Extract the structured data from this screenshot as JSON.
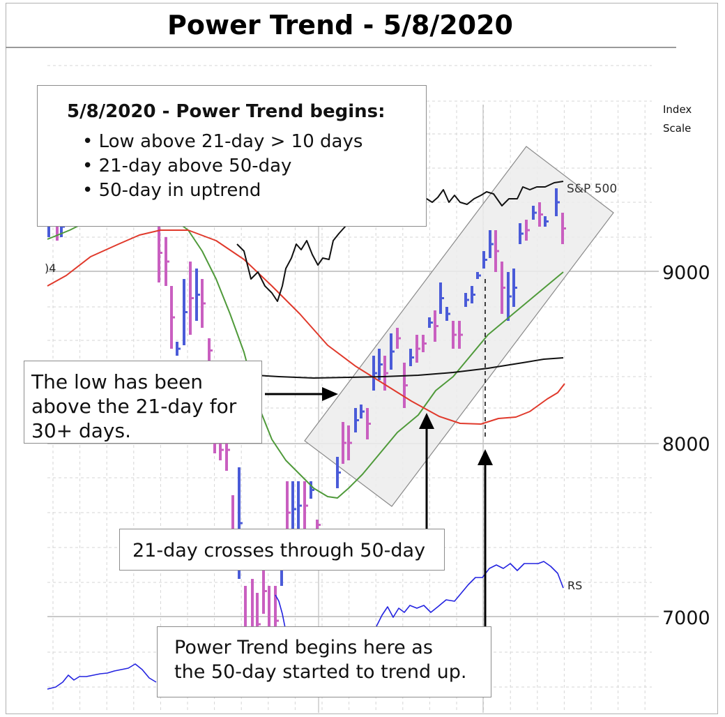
{
  "title": "Power Trend - 5/8/2020",
  "scale_label": [
    "Index",
    "Scale"
  ],
  "index_label": "S&P 500",
  "rs_label": "RS",
  "partial_label": ")4",
  "y_ticks": [
    "9000",
    "8000",
    "7000"
  ],
  "info_box": {
    "heading": "5/8/2020 - Power Trend begins:",
    "bullets": [
      "• Low above 21-day > 10 days",
      "• 21-day above 50-day",
      "• 50-day in uptrend"
    ]
  },
  "low_box": [
    "The low has been",
    "above the 21-day for",
    "30+ days."
  ],
  "cross_box": "21-day crosses through 50-day",
  "pt_box": [
    "Power Trend begins here as",
    "the 50-day started to trend up."
  ],
  "colors": {
    "up_bar": "#4a5bd8",
    "down_bar": "#c95fc0",
    "ma21": "#4f9a3a",
    "ma50": "#e0392b",
    "ma200": "#111111",
    "sp500": "#111111",
    "rs": "#2222e0",
    "channel": "#ececec"
  },
  "chart_data": {
    "type": "line",
    "ylabel": "Index Scale",
    "y_ticks": [
      7000,
      8000,
      9000
    ],
    "series": [
      {
        "name": "S&P 500"
      },
      {
        "name": "RS"
      }
    ]
  }
}
